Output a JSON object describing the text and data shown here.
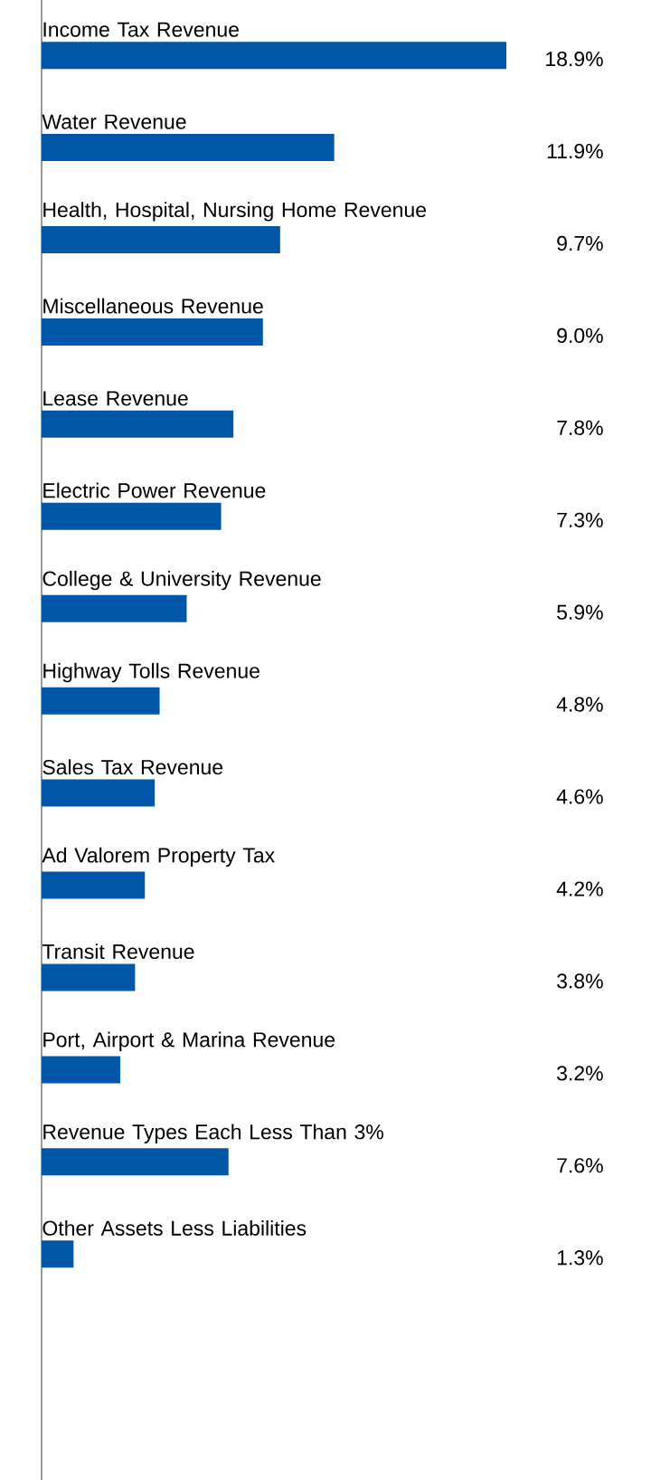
{
  "chart_data": {
    "type": "bar",
    "orientation": "horizontal",
    "color": "#0057a8",
    "categories": [
      "Income Tax Revenue",
      "Water Revenue",
      "Health, Hospital, Nursing Home Revenue",
      "Miscellaneous Revenue",
      "Lease Revenue",
      "Electric Power Revenue",
      "College & University Revenue",
      "Highway Tolls Revenue",
      "Sales Tax Revenue",
      "Ad Valorem Property Tax",
      "Transit Revenue",
      "Port, Airport & Marina Revenue",
      "Revenue Types Each Less Than 3%",
      "Other Assets Less Liabilities"
    ],
    "values": [
      18.9,
      11.9,
      9.7,
      9.0,
      7.8,
      7.3,
      5.9,
      4.8,
      4.6,
      4.2,
      3.8,
      3.2,
      7.6,
      1.3
    ],
    "value_labels": [
      "18.9%",
      "11.9%",
      "9.7%",
      "9.0%",
      "7.8%",
      "7.3%",
      "5.9%",
      "4.8%",
      "4.6%",
      "4.2%",
      "3.8%",
      "3.2%",
      "7.6%",
      "1.3%"
    ]
  }
}
